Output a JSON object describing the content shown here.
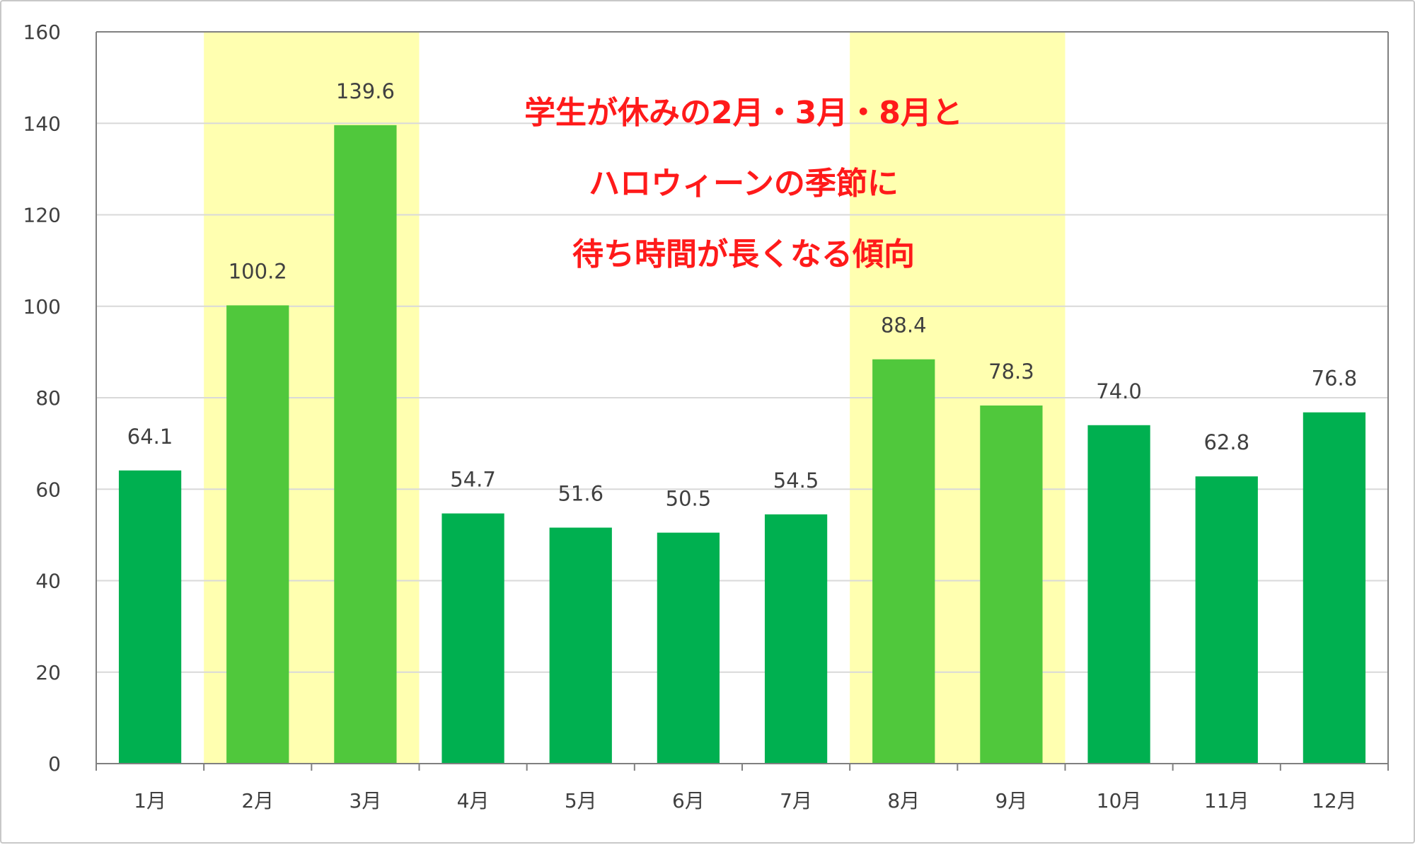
{
  "chart_data": {
    "type": "bar",
    "title": "",
    "xlabel": "",
    "ylabel": "",
    "categories": [
      "1月",
      "2月",
      "3月",
      "4月",
      "5月",
      "6月",
      "7月",
      "8月",
      "9月",
      "10月",
      "11月",
      "12月"
    ],
    "values": [
      64.1,
      100.2,
      139.6,
      54.7,
      51.6,
      50.5,
      54.5,
      88.4,
      78.3,
      74.0,
      62.8,
      76.8
    ],
    "value_labels": [
      "64.1",
      "100.2",
      "139.6",
      "54.7",
      "51.6",
      "50.5",
      "54.5",
      "88.4",
      "78.3",
      "74.0",
      "62.8",
      "76.8"
    ],
    "highlighted_categories": [
      "2月",
      "3月",
      "8月",
      "9月"
    ],
    "ylim": [
      0,
      160
    ],
    "yticks": [
      0,
      20,
      40,
      60,
      80,
      100,
      120,
      140,
      160
    ],
    "grid": true,
    "legend": "none",
    "annotation": {
      "lines": [
        "学生が休みの2月・3月・8月と",
        "ハロウィーンの季節に",
        "待ち時間が長くなる傾向"
      ]
    },
    "colors": {
      "bar": "#00b050",
      "bar_highlight": "#50c83c",
      "highlight_band": "#ffffb0",
      "annotation_text": "#ff1a1a",
      "gridline": "#d9d9d9",
      "axis": "#808080"
    }
  }
}
